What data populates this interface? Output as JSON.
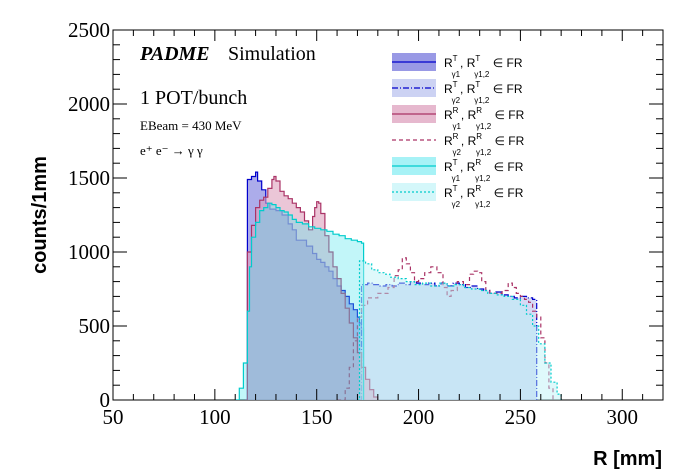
{
  "chart_data": {
    "type": "area",
    "xlabel": "R [mm]",
    "ylabel": "counts/1mm",
    "xlim": [
      50,
      320
    ],
    "ylim": [
      0,
      2500
    ],
    "x_ticks": [
      50,
      100,
      150,
      200,
      250,
      300
    ],
    "y_ticks": [
      0,
      500,
      1000,
      1500,
      2000,
      2500
    ],
    "x_tick_labels": [
      "50",
      "100",
      "150",
      "200",
      "250",
      "300"
    ],
    "y_tick_labels": [
      "0",
      "500",
      "1000",
      "1500",
      "2000",
      "2500"
    ],
    "grid": false,
    "legend_position": "top-right",
    "annotations": {
      "padme": "PADME",
      "simulation": "Simulation",
      "pot": "1 POT/bunch",
      "ebeam": "EBeam = 430 MeV",
      "process": "e⁺ e⁻ → γ γ"
    },
    "series": [
      {
        "name": "R^T_γ1 , R^T_γ1,2 ∈ FR",
        "color": "#0000cc",
        "fill": "#7f7fdf",
        "fill_opacity": 0.65,
        "dash": "",
        "points": [
          [
            115,
            0
          ],
          [
            116,
            1490
          ],
          [
            118,
            1510
          ],
          [
            120,
            1540
          ],
          [
            121,
            1480
          ],
          [
            123,
            1420
          ],
          [
            125,
            1330
          ],
          [
            127,
            1290
          ],
          [
            130,
            1280
          ],
          [
            133,
            1250
          ],
          [
            136,
            1190
          ],
          [
            138,
            1150
          ],
          [
            140,
            1080
          ],
          [
            143,
            1080
          ],
          [
            145,
            1040
          ],
          [
            148,
            990
          ],
          [
            150,
            950
          ],
          [
            152,
            930
          ],
          [
            154,
            900
          ],
          [
            156,
            870
          ],
          [
            158,
            820
          ],
          [
            160,
            770
          ],
          [
            162,
            740
          ],
          [
            164,
            700
          ],
          [
            166,
            650
          ],
          [
            168,
            610
          ],
          [
            170,
            560
          ],
          [
            171,
            520
          ],
          [
            172,
            480
          ],
          [
            173,
            0
          ]
        ]
      },
      {
        "name": "R^T_γ2 , R^T_γ1,2 ∈ FR",
        "color": "#0000cc",
        "fill": "#c7cdf2",
        "fill_opacity": 0.75,
        "dash": "6,2,1,2",
        "points": [
          [
            171,
            0
          ],
          [
            172,
            780
          ],
          [
            175,
            790
          ],
          [
            178,
            780
          ],
          [
            181,
            770
          ],
          [
            184,
            780
          ],
          [
            187,
            770
          ],
          [
            190,
            790
          ],
          [
            193,
            780
          ],
          [
            196,
            800
          ],
          [
            199,
            790
          ],
          [
            202,
            780
          ],
          [
            205,
            790
          ],
          [
            208,
            770
          ],
          [
            211,
            790
          ],
          [
            214,
            770
          ],
          [
            217,
            790
          ],
          [
            220,
            780
          ],
          [
            223,
            760
          ],
          [
            226,
            770
          ],
          [
            229,
            750
          ],
          [
            232,
            740
          ],
          [
            235,
            720
          ],
          [
            238,
            730
          ],
          [
            241,
            710
          ],
          [
            244,
            700
          ],
          [
            247,
            690
          ],
          [
            250,
            700
          ],
          [
            253,
            690
          ],
          [
            256,
            680
          ],
          [
            257,
            680
          ],
          [
            258,
            0
          ]
        ]
      },
      {
        "name": "R^R_γ1 , R^R_γ1,2 ∈ FR",
        "color": "#aa3366",
        "fill": "#dda0bd",
        "fill_opacity": 0.6,
        "dash": "",
        "points": [
          [
            115,
            0
          ],
          [
            116,
            1000
          ],
          [
            118,
            1180
          ],
          [
            120,
            1300
          ],
          [
            122,
            1350
          ],
          [
            124,
            1370
          ],
          [
            126,
            1430
          ],
          [
            128,
            1490
          ],
          [
            129,
            1510
          ],
          [
            130,
            1480
          ],
          [
            132,
            1410
          ],
          [
            134,
            1380
          ],
          [
            136,
            1360
          ],
          [
            138,
            1330
          ],
          [
            140,
            1300
          ],
          [
            142,
            1270
          ],
          [
            144,
            1210
          ],
          [
            146,
            1150
          ],
          [
            148,
            1240
          ],
          [
            149,
            1300
          ],
          [
            150,
            1340
          ],
          [
            151,
            1330
          ],
          [
            152,
            1260
          ],
          [
            154,
            1110
          ],
          [
            156,
            1000
          ],
          [
            158,
            900
          ],
          [
            160,
            820
          ],
          [
            162,
            720
          ],
          [
            164,
            620
          ],
          [
            166,
            520
          ],
          [
            168,
            420
          ],
          [
            170,
            320
          ],
          [
            172,
            220
          ],
          [
            174,
            140
          ],
          [
            176,
            70
          ],
          [
            178,
            20
          ],
          [
            180,
            0
          ]
        ]
      },
      {
        "name": "R^R_γ2 , R^R_γ1,2 ∈ FR",
        "color": "#aa3366",
        "fill": "none",
        "fill_opacity": 0,
        "dash": "4,3",
        "points": [
          [
            160,
            0
          ],
          [
            164,
            80
          ],
          [
            166,
            220
          ],
          [
            168,
            400
          ],
          [
            170,
            560
          ],
          [
            172,
            640
          ],
          [
            175,
            690
          ],
          [
            180,
            720
          ],
          [
            185,
            760
          ],
          [
            188,
            840
          ],
          [
            190,
            880
          ],
          [
            192,
            960
          ],
          [
            194,
            920
          ],
          [
            196,
            860
          ],
          [
            198,
            800
          ],
          [
            200,
            820
          ],
          [
            203,
            860
          ],
          [
            206,
            900
          ],
          [
            209,
            860
          ],
          [
            212,
            760
          ],
          [
            214,
            700
          ],
          [
            216,
            740
          ],
          [
            219,
            800
          ],
          [
            222,
            780
          ],
          [
            225,
            850
          ],
          [
            227,
            870
          ],
          [
            229,
            860
          ],
          [
            231,
            800
          ],
          [
            233,
            740
          ],
          [
            235,
            720
          ],
          [
            238,
            720
          ],
          [
            241,
            740
          ],
          [
            244,
            790
          ],
          [
            246,
            760
          ],
          [
            248,
            720
          ],
          [
            250,
            700
          ],
          [
            252,
            680
          ],
          [
            254,
            660
          ],
          [
            256,
            600
          ],
          [
            258,
            560
          ],
          [
            260,
            420
          ],
          [
            262,
            250
          ],
          [
            264,
            80
          ],
          [
            266,
            0
          ]
        ]
      },
      {
        "name": "R^T_γ1 , R^R_γ1,2 ∈ FR",
        "color": "#00cccc",
        "fill": "#4fe6ee",
        "fill_opacity": 0.35,
        "dash": "",
        "points": [
          [
            110,
            0
          ],
          [
            112,
            80
          ],
          [
            114,
            250
          ],
          [
            116,
            600
          ],
          [
            117,
            900
          ],
          [
            118,
            1100
          ],
          [
            120,
            1200
          ],
          [
            122,
            1280
          ],
          [
            124,
            1300
          ],
          [
            126,
            1330
          ],
          [
            128,
            1320
          ],
          [
            130,
            1300
          ],
          [
            132,
            1280
          ],
          [
            134,
            1270
          ],
          [
            136,
            1250
          ],
          [
            138,
            1220
          ],
          [
            140,
            1200
          ],
          [
            143,
            1190
          ],
          [
            146,
            1170
          ],
          [
            149,
            1160
          ],
          [
            152,
            1150
          ],
          [
            155,
            1140
          ],
          [
            158,
            1120
          ],
          [
            161,
            1110
          ],
          [
            164,
            1090
          ],
          [
            167,
            1080
          ],
          [
            170,
            1070
          ],
          [
            172,
            1060
          ],
          [
            173,
            0
          ]
        ]
      },
      {
        "name": "R^T_γ2 , R^R_γ1,2 ∈ FR",
        "color": "#00cccc",
        "fill": "#b8f2f6",
        "fill_opacity": 0.45,
        "dash": "2,2",
        "points": [
          [
            170,
            0
          ],
          [
            171,
            940
          ],
          [
            174,
            920
          ],
          [
            177,
            880
          ],
          [
            180,
            860
          ],
          [
            183,
            850
          ],
          [
            186,
            830
          ],
          [
            190,
            820
          ],
          [
            194,
            800
          ],
          [
            198,
            780
          ],
          [
            202,
            790
          ],
          [
            206,
            770
          ],
          [
            210,
            790
          ],
          [
            214,
            770
          ],
          [
            218,
            780
          ],
          [
            222,
            760
          ],
          [
            226,
            750
          ],
          [
            230,
            740
          ],
          [
            234,
            720
          ],
          [
            238,
            710
          ],
          [
            242,
            700
          ],
          [
            246,
            680
          ],
          [
            250,
            640
          ],
          [
            253,
            580
          ],
          [
            256,
            500
          ],
          [
            259,
            380
          ],
          [
            262,
            250
          ],
          [
            265,
            120
          ],
          [
            268,
            40
          ],
          [
            270,
            0
          ]
        ]
      }
    ]
  }
}
